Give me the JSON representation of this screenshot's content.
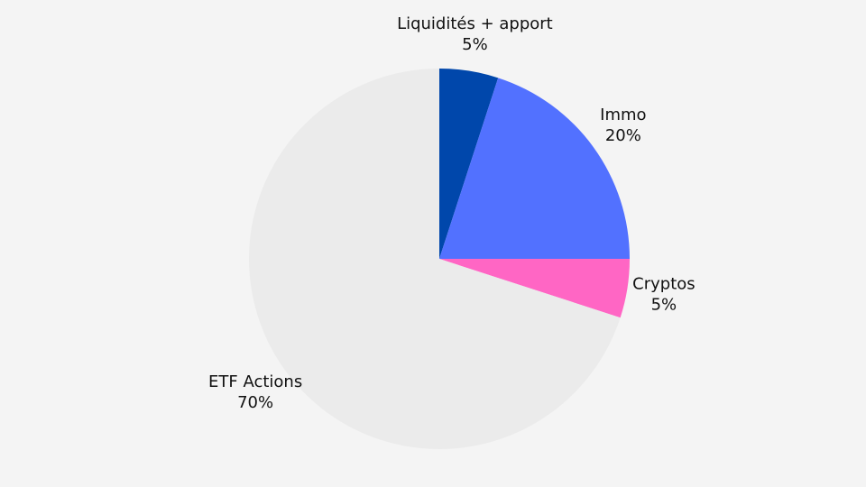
{
  "chart_data": {
    "type": "pie",
    "categories": [
      "Liquidités + apport",
      "Immo",
      "Cryptos",
      "ETF Actions"
    ],
    "values": [
      5,
      20,
      5,
      70
    ],
    "value_labels": [
      "5%",
      "20%",
      "5%",
      "70%"
    ],
    "colors": [
      "#0047ab",
      "#5271ff",
      "#ff66c4",
      "#ebebeb"
    ]
  }
}
